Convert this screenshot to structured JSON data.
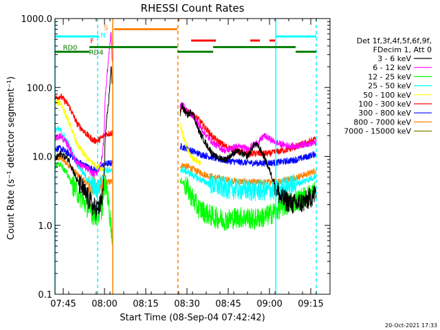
{
  "chart_data": {
    "type": "line",
    "title": "RHESSI Count Rates",
    "xlabel": "Start Time (08-Sep-04 07:42:42)",
    "ylabel": "Count Rate (s⁻¹ detector segment⁻¹)",
    "x_range_minutes_after_0742": [
      0,
      100
    ],
    "ylim": [
      0.1,
      1000
    ],
    "yscale": "log",
    "x_ticks": [
      {
        "label": "07:45",
        "minute": 3
      },
      {
        "label": "08:00",
        "minute": 18
      },
      {
        "label": "08:15",
        "minute": 33
      },
      {
        "label": "08:30",
        "minute": 48
      },
      {
        "label": "08:45",
        "minute": 63
      },
      {
        "label": "09:00",
        "minute": 78
      },
      {
        "label": "09:15",
        "minute": 93
      }
    ],
    "y_ticks": [
      {
        "label": "0.1",
        "value": 0.1
      },
      {
        "label": "1.0",
        "value": 1
      },
      {
        "label": "10.0",
        "value": 10
      },
      {
        "label": "100.0",
        "value": 100
      },
      {
        "label": "1000.0",
        "value": 1000
      }
    ],
    "legend": {
      "placement": "right",
      "header_lines": [
        "Det 1f,3f,4f,5f,6f,9f,",
        "FDecim 1, Att 0"
      ]
    },
    "series": [
      {
        "name": "3 - 6 keV",
        "color": "#000000",
        "x": [
          0,
          2,
          5,
          8,
          12,
          14,
          15.5,
          16.5,
          17.2,
          17.8,
          18.3,
          19.6,
          20.4,
          20.8,
          45.5,
          46,
          48,
          50,
          52,
          55,
          58,
          62,
          66,
          70,
          72.5,
          74,
          76,
          79,
          82,
          87,
          91,
          95
        ],
        "y": [
          9,
          11,
          9,
          4.5,
          2.5,
          1.8,
          1.7,
          2.0,
          2.4,
          5.0,
          20,
          70,
          200,
          120,
          40,
          55,
          40,
          45,
          25,
          15,
          10,
          9,
          12,
          10,
          15,
          14,
          10,
          5,
          2.5,
          2.0,
          2.2,
          3.0
        ]
      },
      {
        "name": "6 - 12 keV",
        "color": "#ff00ff",
        "x": [
          0,
          2,
          5,
          8,
          12,
          14,
          15.5,
          16.5,
          17.2,
          17.8,
          18.3,
          19.6,
          20.4,
          20.8,
          45.5,
          46,
          48,
          50,
          52,
          55,
          58,
          62,
          66,
          70,
          72.5,
          74,
          76,
          79,
          82,
          87,
          91,
          95
        ],
        "y": [
          18,
          20,
          14,
          8,
          6.5,
          5.5,
          6,
          7.5,
          10,
          20,
          80,
          300,
          650,
          250,
          50,
          60,
          45,
          40,
          30,
          20,
          15,
          12,
          14,
          13,
          15,
          16,
          20,
          17,
          15,
          14,
          15,
          16
        ]
      },
      {
        "name": "12 - 25 keV",
        "color": "#00ff00",
        "x": [
          0,
          2,
          5,
          8,
          12,
          14,
          15.5,
          16.5,
          17.2,
          17.8,
          18.3,
          19,
          20.8,
          45.5,
          46,
          48,
          50,
          52,
          55,
          58,
          62,
          66,
          70,
          72.5,
          74,
          76,
          79,
          82,
          87,
          91,
          95
        ],
        "y": [
          7,
          8,
          5,
          3.0,
          1.8,
          1.4,
          1.4,
          1.6,
          1.8,
          3.5,
          4.0,
          3.0,
          0.7,
          4.0,
          4.5,
          3.5,
          2.5,
          1.8,
          1.5,
          1.3,
          1.2,
          1.3,
          1.3,
          1.2,
          1.3,
          1.3,
          1.5,
          1.8,
          2.2,
          2.6,
          3.2
        ]
      },
      {
        "name": "25 - 50 keV",
        "color": "#00ffff",
        "x": [
          0,
          2,
          5,
          8,
          12,
          14,
          15.5,
          16.5,
          17.2,
          17.8,
          18.3,
          20.8,
          45.5,
          48,
          52,
          56,
          60,
          64,
          68,
          72,
          76,
          80,
          84,
          88,
          92,
          95
        ],
        "y": [
          25,
          24,
          15,
          8,
          4.5,
          3.6,
          3.4,
          4.0,
          5.0,
          6.0,
          6.5,
          6.0,
          6.5,
          6.0,
          4.8,
          4.0,
          3.6,
          3.4,
          3.3,
          3.2,
          3.2,
          3.3,
          3.6,
          4.0,
          4.6,
          5.2
        ]
      },
      {
        "name": "50 - 100 keV",
        "color": "#ffff00",
        "x": [
          0,
          2,
          4,
          6,
          8,
          12,
          15.5,
          18.3,
          45.5,
          46.5,
          48,
          49.5,
          51,
          53
        ],
        "y": [
          60,
          60,
          40,
          25,
          15,
          9,
          7,
          6.5,
          30,
          20,
          13,
          10,
          9,
          8
        ]
      },
      {
        "name": "100 - 300 keV",
        "color": "#ff0000",
        "x": [
          0,
          2,
          5,
          8,
          12,
          14,
          15.5,
          16.5,
          17.2,
          17.8,
          18.3,
          20.8,
          45.5,
          46,
          48,
          50,
          52,
          55,
          58,
          62,
          66,
          70,
          74,
          78,
          82,
          86,
          90,
          95
        ],
        "y": [
          70,
          75,
          55,
          30,
          20,
          17,
          17,
          18,
          19,
          20,
          21,
          22,
          45,
          50,
          45,
          40,
          35,
          25,
          18,
          14,
          12,
          11,
          11,
          11,
          12,
          13,
          15,
          18
        ]
      },
      {
        "name": "300 - 800 keV",
        "color": "#0000ff",
        "x": [
          0,
          2,
          5,
          8,
          12,
          14,
          15.5,
          16.5,
          17.2,
          17.8,
          18.3,
          20.8,
          45.5,
          48,
          52,
          56,
          60,
          64,
          68,
          72,
          76,
          80,
          84,
          88,
          92,
          95
        ],
        "y": [
          13,
          13,
          11,
          8.5,
          7,
          6.5,
          6.5,
          7,
          7.3,
          7.6,
          7.8,
          8,
          14,
          13,
          11,
          10,
          9,
          8.5,
          8.2,
          8.0,
          8.0,
          8.1,
          8.5,
          9,
          10,
          11
        ]
      },
      {
        "name": "800 - 7000 keV",
        "color": "#ff8000",
        "x": [
          0,
          2,
          5,
          8,
          12,
          14,
          15.5,
          16.5,
          17.2,
          17.8,
          18.3,
          20.8,
          45.5,
          48,
          52,
          56,
          60,
          64,
          68,
          72,
          76,
          80,
          84,
          88,
          92,
          95
        ],
        "y": [
          9.5,
          9.5,
          7.5,
          5.5,
          4.0,
          3.6,
          3.5,
          3.6,
          3.8,
          4.0,
          4.2,
          4.3,
          7.5,
          7.2,
          6.0,
          5.2,
          4.8,
          4.5,
          4.3,
          4.2,
          4.2,
          4.3,
          4.6,
          5.0,
          5.6,
          6.3
        ]
      },
      {
        "name": "7000 - 15000 keV",
        "color": "#808000",
        "x": [],
        "y": []
      }
    ],
    "flag_bars": [
      {
        "label": "",
        "color": "#00ffff",
        "y": 550,
        "segments": [
          [
            0,
            16
          ],
          [
            80.5,
            95
          ]
        ]
      },
      {
        "label": "",
        "color": "#ff8000",
        "y": 700,
        "segments": [
          [
            21.5,
            44.5
          ]
        ]
      },
      {
        "label": "",
        "color": "#ff0000",
        "y": 480,
        "segments": [
          [
            49.5,
            58.5
          ],
          [
            71,
            74.5
          ],
          [
            78,
            80
          ]
        ]
      },
      {
        "label": "",
        "color": "#008000",
        "y": 385,
        "segments": [
          [
            12.5,
            44.5
          ],
          [
            57.5,
            87.5
          ]
        ]
      },
      {
        "label": "",
        "color": "#008000",
        "y": 330,
        "segments": [
          [
            0,
            12.5
          ],
          [
            44.5,
            57.5
          ],
          [
            87.5,
            95
          ]
        ]
      }
    ],
    "flag_labels": [
      {
        "text": "S",
        "color": "#ff8000",
        "minute": 18.5,
        "y": 750
      },
      {
        "text": "N",
        "color": "#00ffff",
        "minute": 17.5,
        "y": 580
      },
      {
        "text": "F",
        "color": "#ff0000",
        "minute": 13.5,
        "y": 480
      },
      {
        "text": "RD0",
        "color": "#008000",
        "minute": 5.5,
        "y": 385
      },
      {
        "text": "RD4",
        "color": "#008000",
        "minute": 15,
        "y": 330
      }
    ],
    "vertical_lines": [
      {
        "minute": 0,
        "color": "#00ffff",
        "style": "solid"
      },
      {
        "minute": 15.5,
        "color": "#00ffff",
        "style": "dashed"
      },
      {
        "minute": 21,
        "color": "#ff8000",
        "style": "solid"
      },
      {
        "minute": 44.7,
        "color": "#ff8000",
        "style": "dashed"
      },
      {
        "minute": 80.3,
        "color": "#00ffff",
        "style": "solid"
      },
      {
        "minute": 95,
        "color": "#00ffff",
        "style": "dashed"
      }
    ],
    "data_gaps_minutes": [
      [
        20.8,
        45.5
      ]
    ]
  },
  "timestamp": "20-Oct-2021 17:33"
}
